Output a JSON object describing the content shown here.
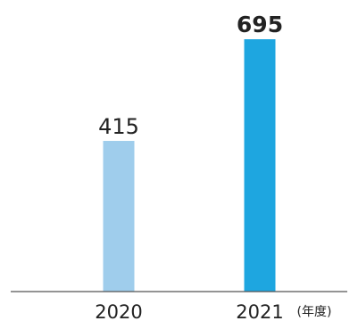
{
  "chart_data": {
    "type": "bar",
    "categories": [
      "2020",
      "2021"
    ],
    "values": [
      415,
      695
    ],
    "value_labels": [
      "415",
      "695"
    ],
    "emphasized": [
      false,
      true
    ],
    "colors": [
      "#9fcdec",
      "#1ea6e0"
    ],
    "xlabel": "",
    "ylabel": "",
    "x_unit_label": "(年度)",
    "ylim": [
      0,
      695
    ],
    "grid": false,
    "legend": "none",
    "axis_color": "#555555"
  }
}
